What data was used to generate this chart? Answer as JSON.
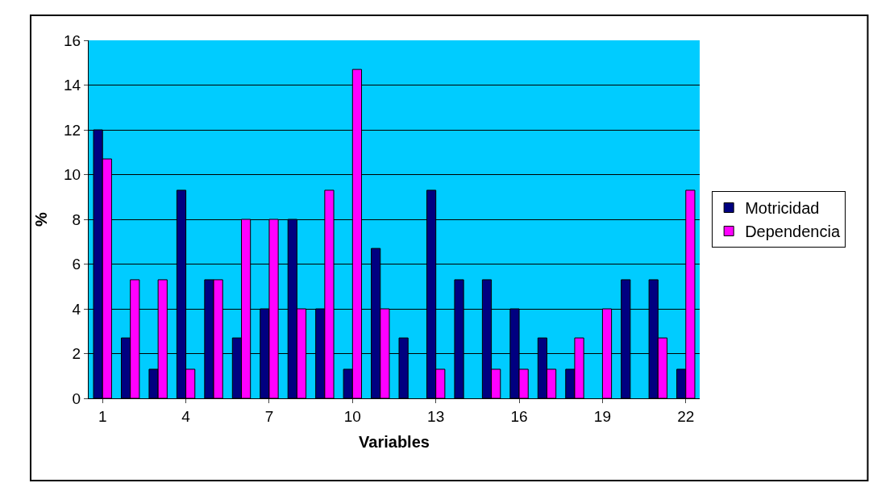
{
  "chart_data": {
    "type": "bar",
    "xlabel": "Variables",
    "ylabel": "%",
    "categories": [
      "1",
      null,
      null,
      "4",
      null,
      null,
      "7",
      null,
      null,
      "10",
      null,
      null,
      "13",
      null,
      null,
      "16",
      null,
      null,
      "19",
      null,
      null,
      "22"
    ],
    "series": [
      {
        "name": "Motricidad",
        "color": "#000080",
        "values": [
          12,
          2.7,
          1.3,
          9.3,
          5.3,
          2.7,
          4,
          8,
          4,
          1.3,
          6.7,
          2.7,
          9.3,
          5.3,
          5.3,
          4,
          2.7,
          1.3,
          0,
          5.3,
          5.3,
          1.3
        ]
      },
      {
        "name": "Dependencia",
        "color": "#ff00ff",
        "values": [
          10.7,
          5.3,
          5.3,
          1.3,
          5.3,
          8,
          8,
          4,
          9.3,
          14.7,
          4,
          0,
          1.3,
          0,
          1.3,
          1.3,
          1.3,
          2.7,
          4,
          0,
          2.7,
          9.3
        ]
      }
    ],
    "ylim": [
      0,
      16
    ],
    "yticks": [
      0,
      2,
      4,
      6,
      8,
      10,
      12,
      14,
      16
    ],
    "grid": "y",
    "legend": "right"
  }
}
